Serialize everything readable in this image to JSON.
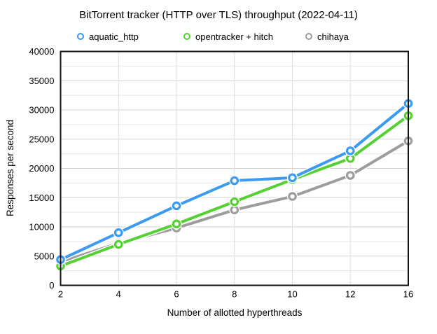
{
  "title": "BitTorrent tracker (HTTP over TLS) throughput (2022-04-11)",
  "chart_data": {
    "type": "line",
    "title": "BitTorrent tracker (HTTP over TLS) throughput (2022-04-11)",
    "xlabel": "Number of allotted hyperthreads",
    "ylabel": "Responses per second",
    "categories": [
      "2",
      "4",
      "6",
      "8",
      "10",
      "12",
      "16"
    ],
    "ylim": [
      0,
      40000
    ],
    "y_major_step": 5000,
    "y_minor_step": 2500,
    "y_tick_labels": [
      "0",
      "5000",
      "10000",
      "15000",
      "20000",
      "25000",
      "30000",
      "35000",
      "40000"
    ],
    "grid": true,
    "legend_position": "top",
    "series": [
      {
        "name": "aquatic_http",
        "color": "#3b9af2",
        "values": [
          4400,
          9000,
          13600,
          17900,
          18400,
          23000,
          31100
        ]
      },
      {
        "name": "opentracker + hitch",
        "color": "#55d133",
        "values": [
          3300,
          7000,
          10500,
          14300,
          18100,
          21700,
          29000
        ]
      },
      {
        "name": "chihaya",
        "color": "#9d9d9d",
        "values": [
          4000,
          7200,
          9800,
          12900,
          15200,
          18800,
          24700
        ]
      }
    ],
    "colors": {
      "frame": "#111111",
      "grid_major": "#d2d2d2",
      "grid_minor": "#e6e6e6",
      "grid_vertical": "#dedede",
      "marker_fill": "#ffffff",
      "background": "#ffffff",
      "text": "#000000"
    }
  }
}
